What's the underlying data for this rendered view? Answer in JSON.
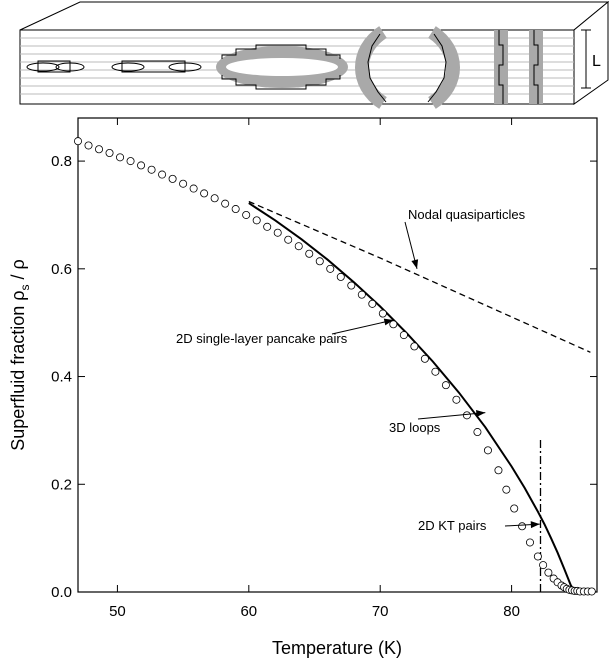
{
  "chart_data": {
    "type": "scatter",
    "xlabel": "Temperature  (K)",
    "ylabel": "Superfluid fraction  ρs / ρ",
    "ylabel_parts": {
      "main": "Superfluid fraction  ρ",
      "sub": "s",
      "tail": " / ρ"
    },
    "xlim": [
      47,
      86.5
    ],
    "ylim": [
      0.0,
      0.88
    ],
    "xticks": [
      50,
      60,
      70,
      80
    ],
    "yticks": [
      0.0,
      0.2,
      0.4,
      0.6,
      0.8
    ],
    "xtick_labels": [
      "50",
      "60",
      "70",
      "80"
    ],
    "ytick_labels": [
      "0.0",
      "0.2",
      "0.4",
      "0.6",
      "0.8"
    ],
    "grid": false,
    "schematic_label": "L",
    "series": [
      {
        "marker": "open-circle",
        "x": [
          47.0,
          47.8,
          48.6,
          49.4,
          50.2,
          51.0,
          51.8,
          52.6,
          53.4,
          54.2,
          55.0,
          55.8,
          56.6,
          57.4,
          58.2,
          59.0,
          59.8,
          60.6,
          61.4,
          62.2,
          63.0,
          63.8,
          64.6,
          65.4,
          66.2,
          67.0,
          67.8,
          68.6,
          69.4,
          70.2,
          71.0,
          71.8,
          72.6,
          73.4,
          74.2,
          75.0,
          75.8,
          76.6,
          77.4,
          78.2,
          79.0,
          79.6,
          80.2,
          80.8,
          81.4,
          82.0,
          82.4,
          82.8,
          83.2,
          83.5,
          83.8,
          84.0,
          84.2,
          84.4,
          84.6,
          84.8,
          85.0,
          85.2,
          85.5,
          85.8,
          86.1
        ],
        "y": [
          0.837,
          0.829,
          0.822,
          0.815,
          0.807,
          0.8,
          0.792,
          0.784,
          0.775,
          0.767,
          0.758,
          0.749,
          0.74,
          0.731,
          0.721,
          0.711,
          0.7,
          0.69,
          0.678,
          0.667,
          0.654,
          0.642,
          0.628,
          0.614,
          0.6,
          0.585,
          0.569,
          0.552,
          0.535,
          0.517,
          0.497,
          0.477,
          0.456,
          0.433,
          0.409,
          0.384,
          0.357,
          0.328,
          0.297,
          0.263,
          0.226,
          0.19,
          0.155,
          0.122,
          0.092,
          0.066,
          0.05,
          0.036,
          0.025,
          0.018,
          0.012,
          0.009,
          0.006,
          0.004,
          0.003,
          0.002,
          0.002,
          0.001,
          0.001,
          0.001,
          0.001
        ]
      },
      {
        "line": "solid",
        "x": [
          60.0,
          62.0,
          64.0,
          66.0,
          68.0,
          70.0,
          72.0,
          74.0,
          76.0,
          78.0,
          80.0,
          81.0,
          82.0,
          82.5,
          83.0,
          83.5,
          84.0,
          84.3,
          84.5,
          84.7,
          84.85,
          85.0
        ],
        "y": [
          0.722,
          0.69,
          0.655,
          0.617,
          0.575,
          0.53,
          0.481,
          0.428,
          0.37,
          0.306,
          0.233,
          0.193,
          0.149,
          0.126,
          0.1,
          0.073,
          0.043,
          0.025,
          0.013,
          0.005,
          0.001,
          0.0
        ]
      },
      {
        "line": "dashed",
        "x": [
          60.0,
          70.0,
          86.0
        ],
        "y": [
          0.725,
          0.62,
          0.445
        ]
      },
      {
        "line": "dash-dot",
        "x": [
          82.2,
          82.2
        ],
        "y": [
          0.0,
          0.285
        ]
      }
    ],
    "annotations": [
      {
        "text": "Nodal quasiparticles",
        "arrow_to": [
          72.8,
          0.6
        ]
      },
      {
        "text": "2D single-layer pancake pairs",
        "arrow_to": [
          71.0,
          0.505
        ]
      },
      {
        "text": "3D loops",
        "arrow_to": [
          78.0,
          0.333
        ]
      },
      {
        "text": "2D KT pairs",
        "arrow_to": [
          82.15,
          0.126
        ]
      }
    ]
  }
}
